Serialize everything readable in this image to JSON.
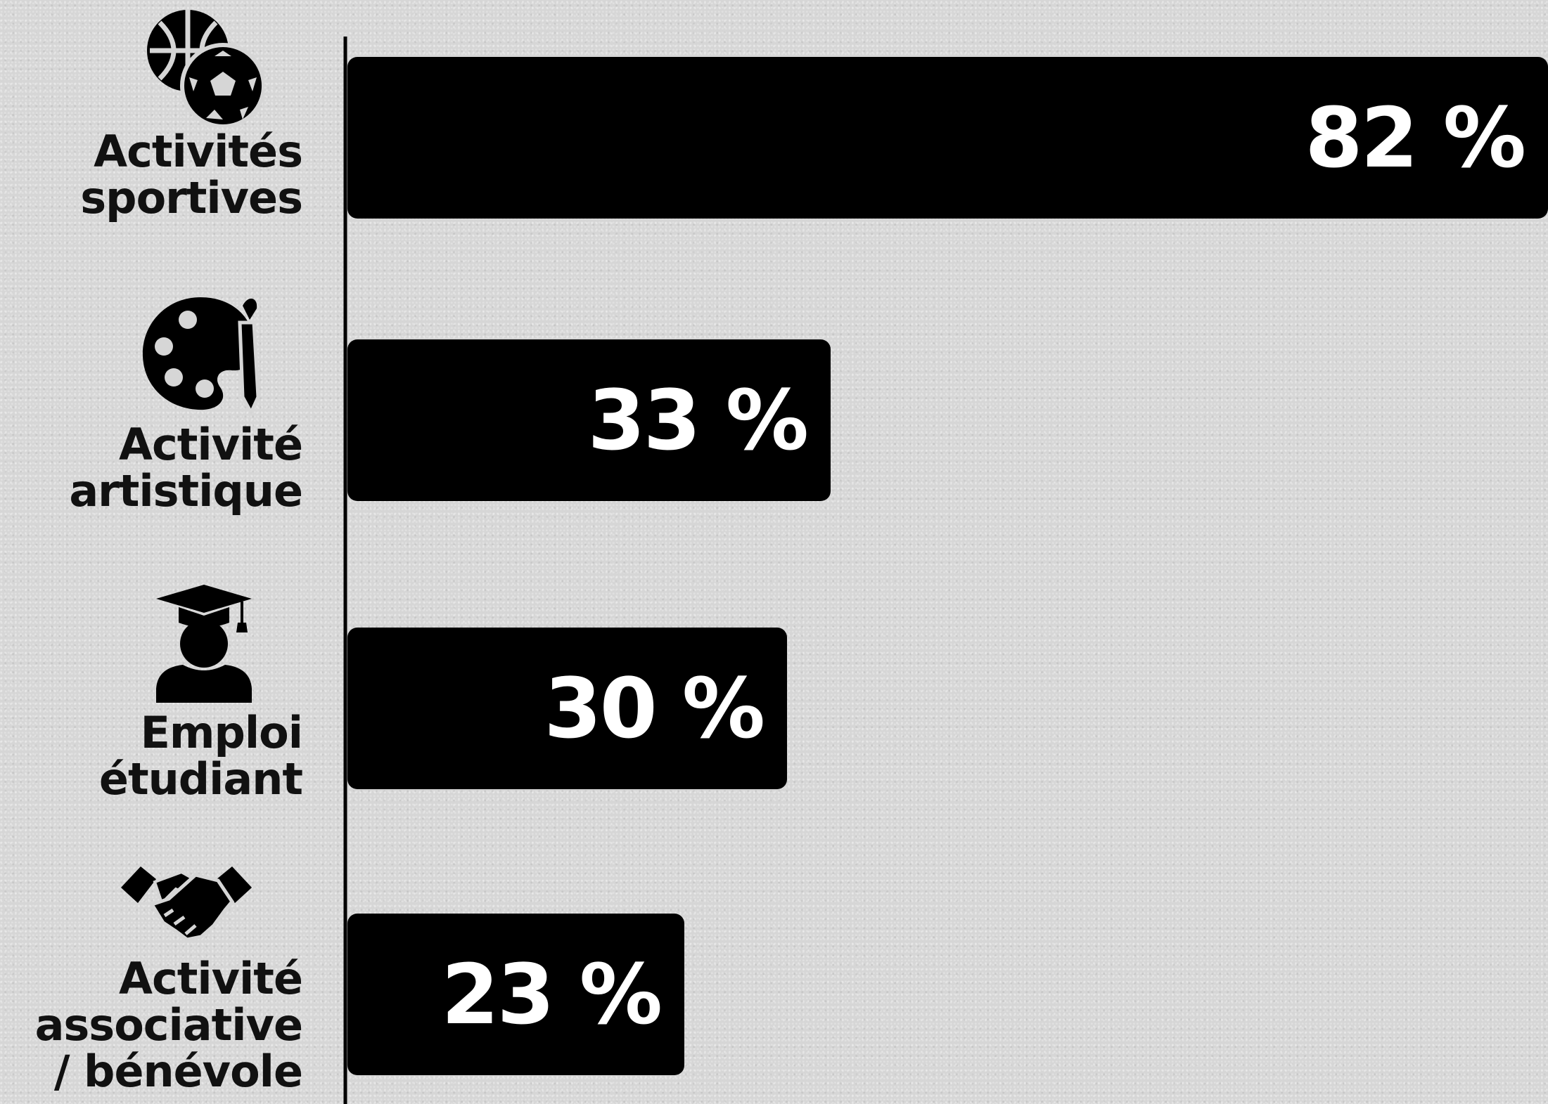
{
  "chart_data": {
    "type": "bar",
    "orientation": "horizontal",
    "categories": [
      "Activités\nsportives",
      "Activité\nartistique",
      "Emploi\nétudiant",
      "Activité\nassociative\n/ bénévole"
    ],
    "values": [
      82,
      33,
      30,
      23
    ],
    "value_labels": [
      "82 %",
      "33 %",
      "30 %",
      "23 %"
    ],
    "icons": [
      "sports-balls-icon",
      "paint-palette-icon",
      "graduate-icon",
      "handshake-icon"
    ],
    "xlim": [
      0,
      82
    ],
    "grid": false,
    "bar_color": "#000000",
    "label_color": "#ffffff"
  }
}
